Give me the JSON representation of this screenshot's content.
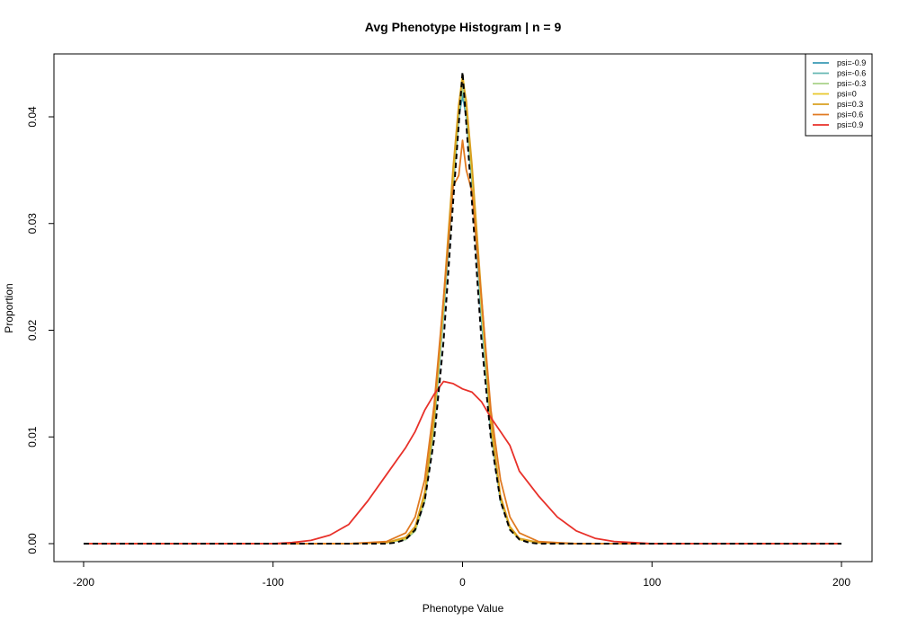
{
  "chart_data": {
    "type": "line",
    "title": "Avg Phenotype Histogram | n = 9",
    "xlabel": "Phenotype Value",
    "ylabel": "Proportion",
    "xlim": [
      -200,
      200
    ],
    "ylim": [
      0,
      0.044
    ],
    "x_ticks": [
      -200,
      -100,
      0,
      100,
      200
    ],
    "x_tick_labels": [
      "-200",
      "-100",
      "0",
      "100",
      "200"
    ],
    "y_ticks": [
      0,
      0.01,
      0.02,
      0.03,
      0.04
    ],
    "y_tick_labels": [
      "0.00",
      "0.01",
      "0.02",
      "0.03",
      "0.04"
    ],
    "grid": false,
    "legend_position": "top-right",
    "series": [
      {
        "name": "psi=-0.9",
        "color": "#3a9ab5",
        "line": "solid",
        "x": [
          -200,
          -60,
          -40,
          -30,
          -25,
          -20,
          -15,
          -10,
          -5,
          -2,
          0,
          2,
          5,
          10,
          15,
          20,
          25,
          30,
          40,
          60,
          200
        ],
        "y": [
          0,
          0,
          0.0001,
          0.0004,
          0.0012,
          0.004,
          0.011,
          0.0215,
          0.0335,
          0.04,
          0.042,
          0.04,
          0.034,
          0.021,
          0.0105,
          0.004,
          0.0015,
          0.0004,
          0.0001,
          0,
          0
        ]
      },
      {
        "name": "psi=-0.6",
        "color": "#66b8b3",
        "line": "solid",
        "x": [
          -200,
          -60,
          -40,
          -30,
          -25,
          -20,
          -15,
          -10,
          -5,
          -2,
          0,
          2,
          5,
          10,
          15,
          20,
          25,
          30,
          40,
          60,
          200
        ],
        "y": [
          0,
          0,
          0.0001,
          0.0004,
          0.0013,
          0.0042,
          0.0112,
          0.0218,
          0.0338,
          0.0402,
          0.0425,
          0.0405,
          0.0342,
          0.0215,
          0.0108,
          0.0041,
          0.0015,
          0.0004,
          0.0001,
          0,
          0
        ]
      },
      {
        "name": "psi=-0.3",
        "color": "#a8d28a",
        "line": "solid",
        "x": [
          -200,
          -60,
          -40,
          -30,
          -25,
          -20,
          -15,
          -10,
          -5,
          -2,
          0,
          2,
          5,
          10,
          15,
          20,
          25,
          30,
          40,
          60,
          200
        ],
        "y": [
          0,
          0,
          0.0001,
          0.0004,
          0.0012,
          0.0041,
          0.0113,
          0.022,
          0.034,
          0.0405,
          0.0428,
          0.0406,
          0.0345,
          0.0218,
          0.011,
          0.0042,
          0.0014,
          0.0004,
          0.0001,
          0,
          0
        ]
      },
      {
        "name": "psi=0",
        "color": "#e8c72a",
        "line": "solid",
        "x": [
          -200,
          -60,
          -40,
          -30,
          -25,
          -20,
          -15,
          -10,
          -5,
          -2,
          0,
          2,
          5,
          10,
          15,
          20,
          25,
          30,
          40,
          60,
          200
        ],
        "y": [
          0,
          0,
          0.0001,
          0.0005,
          0.0014,
          0.0045,
          0.0118,
          0.0225,
          0.0345,
          0.041,
          0.044,
          0.0412,
          0.035,
          0.0225,
          0.0112,
          0.0043,
          0.0015,
          0.0004,
          0.0001,
          0,
          0
        ]
      },
      {
        "name": "psi=0.3",
        "color": "#d9a021",
        "line": "solid",
        "x": [
          -200,
          -60,
          -40,
          -30,
          -25,
          -20,
          -15,
          -10,
          -5,
          -2,
          0,
          2,
          5,
          10,
          15,
          20,
          25,
          30,
          40,
          60,
          200
        ],
        "y": [
          0,
          0,
          0.0001,
          0.0006,
          0.0016,
          0.0048,
          0.012,
          0.023,
          0.0352,
          0.0412,
          0.0435,
          0.0415,
          0.0355,
          0.0232,
          0.0115,
          0.0045,
          0.0016,
          0.0005,
          0.0001,
          0,
          0
        ]
      },
      {
        "name": "psi=0.6",
        "color": "#e07a22",
        "line": "solid",
        "x": [
          -200,
          -60,
          -40,
          -30,
          -25,
          -20,
          -15,
          -10,
          -5,
          -2,
          0,
          2,
          5,
          10,
          15,
          20,
          25,
          30,
          40,
          60,
          200
        ],
        "y": [
          0,
          0,
          0.0002,
          0.001,
          0.0025,
          0.006,
          0.013,
          0.023,
          0.0335,
          0.0345,
          0.0378,
          0.035,
          0.033,
          0.023,
          0.0125,
          0.006,
          0.0025,
          0.001,
          0.0002,
          0,
          0
        ]
      },
      {
        "name": "psi=0.9",
        "color": "#e8312a",
        "line": "solid",
        "x": [
          -200,
          -100,
          -90,
          -80,
          -70,
          -60,
          -50,
          -40,
          -30,
          -25,
          -20,
          -15,
          -10,
          -5,
          0,
          5,
          10,
          15,
          20,
          25,
          30,
          40,
          50,
          60,
          70,
          80,
          90,
          100,
          200
        ],
        "y": [
          0,
          0,
          0.0001,
          0.0003,
          0.0008,
          0.0018,
          0.004,
          0.0065,
          0.009,
          0.0105,
          0.0125,
          0.014,
          0.0152,
          0.015,
          0.0145,
          0.0142,
          0.0133,
          0.0118,
          0.0105,
          0.0092,
          0.0068,
          0.0045,
          0.0025,
          0.0012,
          0.0005,
          0.0002,
          0.0001,
          0,
          0
        ]
      },
      {
        "name": "",
        "color": "#000000",
        "line": "dashed",
        "x": [
          -200,
          -40,
          -35,
          -30,
          -25,
          -20,
          -15,
          -10,
          -5,
          0,
          5,
          10,
          15,
          20,
          25,
          30,
          35,
          40,
          200
        ],
        "y": [
          0,
          0,
          0.0001,
          0.0004,
          0.0013,
          0.004,
          0.0098,
          0.019,
          0.032,
          0.0442,
          0.032,
          0.019,
          0.0098,
          0.004,
          0.0013,
          0.0004,
          0.0001,
          0,
          0
        ]
      }
    ]
  }
}
